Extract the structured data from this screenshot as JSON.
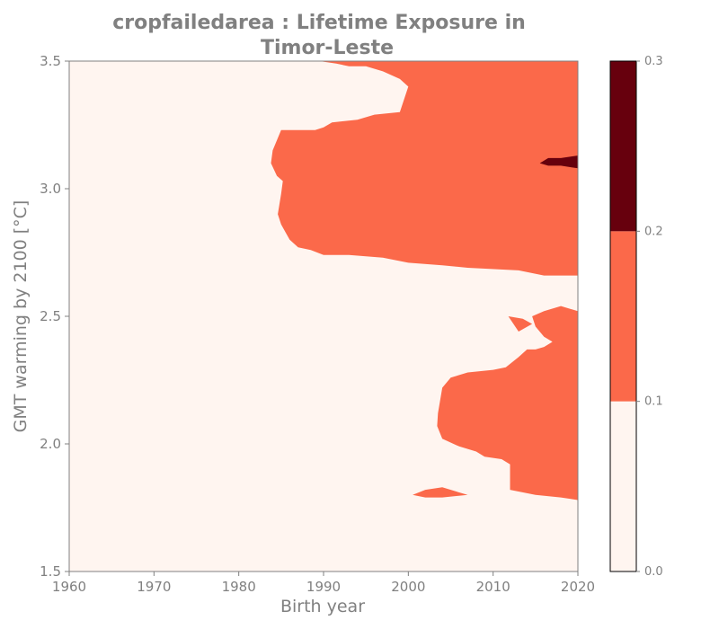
{
  "chart_data": {
    "type": "heatmap",
    "title_lines": [
      "cropfailedarea : Lifetime Exposure in",
      "Timor-Leste"
    ],
    "xlabel": "Birth year",
    "ylabel": "GMT warming by 2100 [°C]",
    "xlim": [
      1960,
      2020
    ],
    "ylim": [
      1.5,
      3.5
    ],
    "x_ticks": [
      1960,
      1970,
      1980,
      1990,
      2000,
      2010,
      2020
    ],
    "y_ticks": [
      1.5,
      2.0,
      2.5,
      3.0,
      3.5
    ],
    "x_tick_labels": [
      "1960",
      "1970",
      "1980",
      "1990",
      "2000",
      "2010",
      "2020"
    ],
    "y_tick_labels": [
      "1.5",
      "2.0",
      "2.5",
      "3.0",
      "3.5"
    ],
    "grid": false,
    "colorbar": {
      "placement": "right",
      "levels": [
        0.0,
        0.1,
        0.2,
        0.3
      ],
      "tick_labels": [
        "0.0",
        "0.1",
        "0.2",
        "0.3"
      ],
      "colors": [
        "#fff5f0",
        "#fb694a",
        "#67000d"
      ]
    },
    "regions": [
      {
        "level_range": [
          0.1,
          0.2
        ],
        "color": "#fb694a",
        "points": [
          [
            1989.5,
            3.5
          ],
          [
            2020,
            3.5
          ],
          [
            2020,
            2.66
          ],
          [
            2016,
            2.66
          ],
          [
            2013,
            2.68
          ],
          [
            2007,
            2.69
          ],
          [
            2004,
            2.7
          ],
          [
            2000,
            2.71
          ],
          [
            1997,
            2.73
          ],
          [
            1993,
            2.74
          ],
          [
            1990,
            2.74
          ],
          [
            1988.5,
            2.76
          ],
          [
            1987,
            2.77
          ],
          [
            1986,
            2.8
          ],
          [
            1985,
            2.86
          ],
          [
            1984.6,
            2.9
          ],
          [
            1985,
            2.98
          ],
          [
            1985.2,
            3.03
          ],
          [
            1984.5,
            3.05
          ],
          [
            1983.8,
            3.1
          ],
          [
            1984,
            3.15
          ],
          [
            1985,
            3.23
          ],
          [
            1989,
            3.23
          ],
          [
            1990,
            3.24
          ],
          [
            1991,
            3.26
          ],
          [
            1994,
            3.27
          ],
          [
            1996,
            3.29
          ],
          [
            1999,
            3.3
          ],
          [
            2000,
            3.4
          ],
          [
            1999,
            3.43
          ],
          [
            1997,
            3.46
          ],
          [
            1995,
            3.48
          ],
          [
            1993,
            3.48
          ],
          [
            1991.5,
            3.49
          ]
        ]
      },
      {
        "level_range": [
          0.1,
          0.2
        ],
        "color": "#fb694a",
        "points": [
          [
            2020,
            2.52
          ],
          [
            2019,
            2.53
          ],
          [
            2018,
            2.54
          ],
          [
            2016,
            2.52
          ],
          [
            2014.6,
            2.5
          ],
          [
            2015,
            2.46
          ],
          [
            2016,
            2.42
          ],
          [
            2017,
            2.4
          ],
          [
            2016,
            2.38
          ],
          [
            2015,
            2.37
          ],
          [
            2014,
            2.37
          ],
          [
            2013,
            2.34
          ],
          [
            2011.5,
            2.3
          ],
          [
            2010,
            2.29
          ],
          [
            2007,
            2.28
          ],
          [
            2005,
            2.26
          ],
          [
            2004,
            2.22
          ],
          [
            2003.5,
            2.12
          ],
          [
            2003.4,
            2.07
          ],
          [
            2004,
            2.02
          ],
          [
            2006,
            1.99
          ],
          [
            2008,
            1.97
          ],
          [
            2009,
            1.95
          ],
          [
            2011,
            1.94
          ],
          [
            2012,
            1.92
          ],
          [
            2012,
            1.82
          ],
          [
            2015,
            1.8
          ],
          [
            2018,
            1.79
          ],
          [
            2020,
            1.78
          ]
        ]
      },
      {
        "level_range": [
          0.1,
          0.2
        ],
        "color": "#fb694a",
        "points": [
          [
            2011.8,
            2.5
          ],
          [
            2013.5,
            2.49
          ],
          [
            2014.6,
            2.47
          ],
          [
            2013,
            2.44
          ]
        ]
      },
      {
        "level_range": [
          0.1,
          0.2
        ],
        "color": "#fb694a",
        "points": [
          [
            2000.5,
            1.8
          ],
          [
            2002,
            1.82
          ],
          [
            2004,
            1.83
          ],
          [
            2006,
            1.81
          ],
          [
            2007,
            1.8
          ],
          [
            2004,
            1.79
          ],
          [
            2002,
            1.79
          ]
        ]
      },
      {
        "level_range": [
          0.2,
          0.3
        ],
        "color": "#67000d",
        "points": [
          [
            2015.5,
            3.1
          ],
          [
            2016.5,
            3.12
          ],
          [
            2018,
            3.12
          ],
          [
            2020,
            3.13
          ],
          [
            2020,
            3.08
          ],
          [
            2018,
            3.09
          ],
          [
            2016.5,
            3.09
          ]
        ]
      }
    ]
  }
}
